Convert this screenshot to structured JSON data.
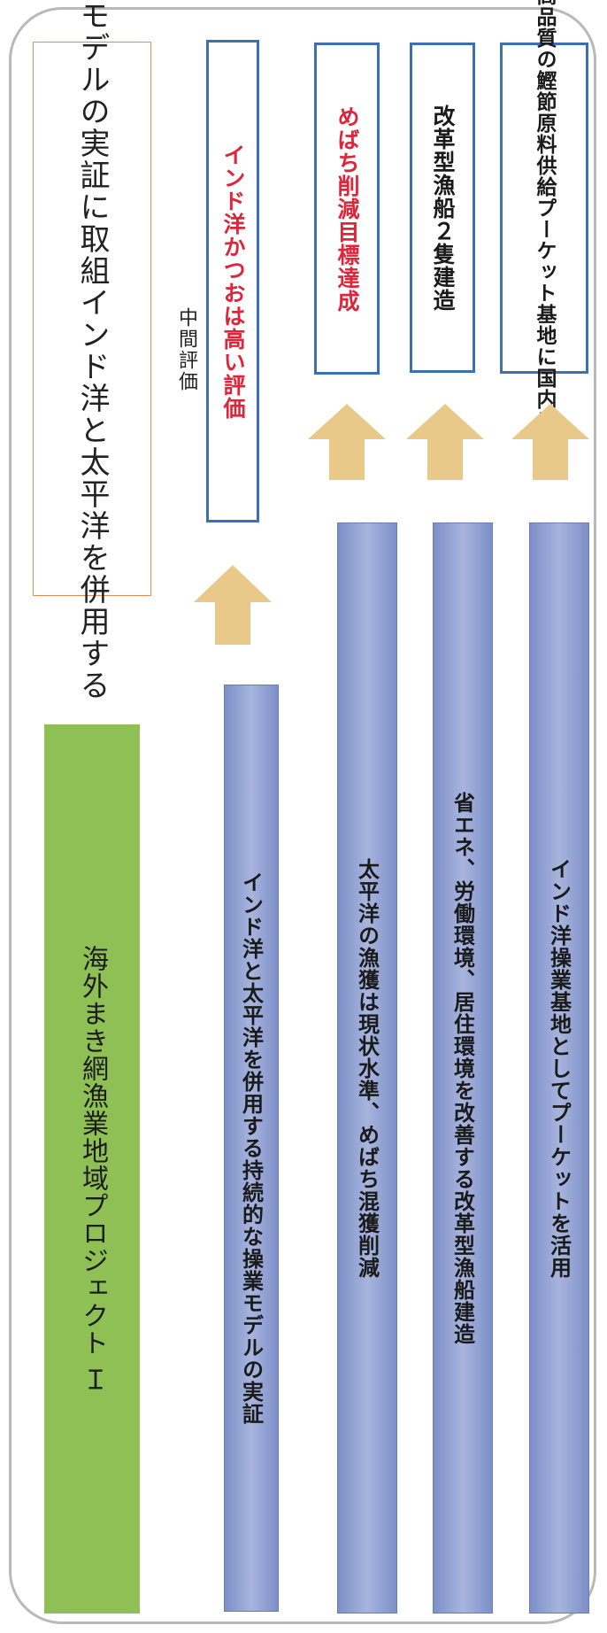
{
  "project_title": "海外まき網漁業地域プロジェクト Ｉ",
  "main_box": {
    "line1": "インド洋と太平洋を併用する",
    "line2": "操業モデルの実証に取組"
  },
  "midterm_label": "中間評価",
  "initiatives": [
    "インド洋と太平洋を併用する持続的な操業モデルの実証",
    "太平洋の漁獲は現状水準、めばち混獲削減",
    "省エネ、労働環境、居住環境を改善する改革型漁船建造",
    "インド洋操業基地としてプーケットを活用"
  ],
  "results": [
    {
      "text": "インド洋かつおは高い評価"
    },
    {
      "text": "めばち削減目標達成"
    },
    {
      "text": "改革型漁船２隻建造"
    },
    {
      "line1": "プーケット基地に国内に",
      "line2": "高品質の鰹節原料供給"
    }
  ],
  "colors": {
    "green": "#8fc055",
    "blue_bar": "#8fa0d2",
    "result_border": "#3d6fb5",
    "red_text": "#e0243a",
    "arrow": "#e9c98a",
    "title_border": "#e38a5a"
  },
  "icons": [
    "up-arrow-icon"
  ]
}
